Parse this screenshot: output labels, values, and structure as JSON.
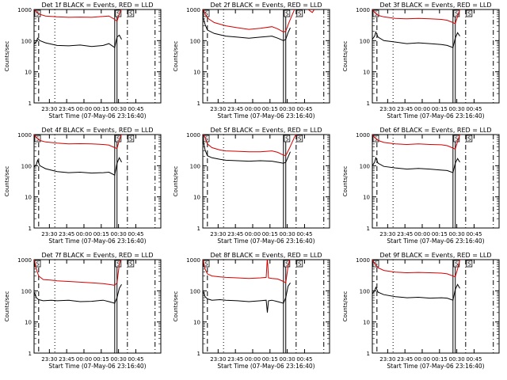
{
  "colors": {
    "events": "#000000",
    "lld": "#d40000",
    "axis": "#000000"
  },
  "ylabel": "Counts/sec",
  "xlabel": "Start Time (07-May-06 23:16:40)",
  "y_ticks": [
    "1",
    "10",
    "100",
    "1000"
  ],
  "y_scale": "log",
  "x_ticks": [
    "23:30",
    "23:45",
    "00:00",
    "00:15",
    "00:30",
    "00:45"
  ],
  "x_range_minutes": [
    0,
    110
  ],
  "x_tick_minutes": [
    13.3,
    28.3,
    43.3,
    58.3,
    73.3,
    88.3
  ],
  "ylim": [
    1,
    1000
  ],
  "marker_labels": [
    "S",
    "S",
    "S"
  ],
  "vlines": [
    {
      "style": "dashed",
      "minute": 4
    },
    {
      "style": "dotted",
      "minute": 18
    },
    {
      "style": "solid",
      "minute": 70
    },
    {
      "style": "solid",
      "minute": 72
    },
    {
      "style": "dashdot",
      "minute": 81
    },
    {
      "style": "dashdot",
      "minute": 105
    }
  ],
  "chart_data": [
    {
      "type": "line",
      "title": "Det 1f BLACK = Events, RED = LLD",
      "series": [
        {
          "color": "red",
          "x": [
            0,
            2,
            5,
            10,
            20,
            30,
            40,
            50,
            60,
            65,
            70,
            72,
            74,
            76,
            78
          ],
          "y": [
            1050,
            850,
            700,
            620,
            580,
            560,
            570,
            560,
            600,
            620,
            480,
            420,
            700,
            1100,
            1300
          ]
        },
        {
          "color": "black",
          "x": [
            0,
            2,
            3,
            5,
            10,
            20,
            30,
            40,
            50,
            60,
            65,
            70,
            72,
            74,
            76
          ],
          "y": [
            80,
            90,
            120,
            100,
            85,
            70,
            68,
            72,
            65,
            70,
            80,
            60,
            130,
            150,
            110
          ]
        }
      ]
    },
    {
      "type": "line",
      "title": "Det 2f BLACK = Events, RED = LLD",
      "series": [
        {
          "color": "red",
          "x": [
            0,
            2,
            5,
            10,
            20,
            30,
            40,
            50,
            60,
            65,
            70,
            72,
            75,
            80,
            85,
            90,
            95,
            100
          ],
          "y": [
            1200,
            700,
            500,
            380,
            300,
            260,
            230,
            250,
            280,
            240,
            190,
            200,
            400,
            1100,
            1400,
            1100,
            800,
            1500
          ]
        },
        {
          "color": "black",
          "x": [
            0,
            2,
            4,
            10,
            20,
            30,
            40,
            50,
            60,
            65,
            70,
            72,
            74,
            76
          ],
          "y": [
            600,
            330,
            220,
            170,
            140,
            130,
            120,
            130,
            140,
            120,
            100,
            110,
            180,
            260
          ]
        }
      ]
    },
    {
      "type": "line",
      "title": "Det 3f BLACK = Events, RED = LLD",
      "series": [
        {
          "color": "red",
          "x": [
            0,
            2,
            5,
            10,
            20,
            30,
            40,
            50,
            60,
            65,
            70,
            72,
            74,
            76,
            78
          ],
          "y": [
            1100,
            800,
            650,
            580,
            520,
            500,
            520,
            500,
            480,
            450,
            380,
            350,
            600,
            1000,
            1300
          ]
        },
        {
          "color": "black",
          "x": [
            0,
            2,
            3,
            5,
            10,
            20,
            30,
            40,
            50,
            60,
            65,
            70,
            72,
            74,
            76
          ],
          "y": [
            110,
            140,
            190,
            130,
            100,
            90,
            80,
            85,
            80,
            75,
            70,
            60,
            120,
            180,
            140
          ]
        }
      ]
    },
    {
      "type": "line",
      "title": "Det 4f BLACK = Events, RED = LLD",
      "series": [
        {
          "color": "red",
          "x": [
            0,
            2,
            5,
            10,
            20,
            30,
            40,
            50,
            60,
            65,
            70,
            72,
            74,
            76,
            78
          ],
          "y": [
            1000,
            800,
            650,
            580,
            530,
            500,
            510,
            500,
            480,
            460,
            380,
            360,
            650,
            1100,
            1300
          ]
        },
        {
          "color": "black",
          "x": [
            0,
            2,
            3,
            5,
            10,
            20,
            30,
            40,
            50,
            60,
            65,
            70,
            72,
            74,
            76
          ],
          "y": [
            90,
            110,
            150,
            100,
            80,
            65,
            60,
            62,
            58,
            60,
            62,
            50,
            120,
            180,
            130
          ]
        }
      ]
    },
    {
      "type": "line",
      "title": "Det 5f BLACK = Events, RED = LLD",
      "series": [
        {
          "color": "red",
          "x": [
            0,
            2,
            4,
            8,
            15,
            20,
            30,
            40,
            50,
            60,
            65,
            70,
            72,
            75,
            80,
            85
          ],
          "y": [
            1100,
            800,
            500,
            380,
            320,
            300,
            290,
            280,
            280,
            300,
            270,
            220,
            210,
            350,
            900,
            1300
          ]
        },
        {
          "color": "black",
          "x": [
            0,
            2,
            4,
            8,
            15,
            20,
            30,
            40,
            50,
            60,
            65,
            70,
            72,
            74,
            76
          ],
          "y": [
            700,
            320,
            210,
            180,
            160,
            150,
            145,
            140,
            145,
            140,
            130,
            120,
            130,
            190,
            280
          ]
        }
      ]
    },
    {
      "type": "line",
      "title": "Det 6f BLACK = Events, RED = LLD",
      "series": [
        {
          "color": "red",
          "x": [
            0,
            2,
            5,
            10,
            20,
            30,
            40,
            50,
            60,
            65,
            70,
            72,
            74,
            76,
            78
          ],
          "y": [
            1050,
            800,
            650,
            560,
            500,
            480,
            500,
            480,
            470,
            440,
            370,
            340,
            600,
            1000,
            1300
          ]
        },
        {
          "color": "black",
          "x": [
            0,
            2,
            3,
            5,
            10,
            20,
            30,
            40,
            50,
            60,
            65,
            70,
            72,
            74,
            76
          ],
          "y": [
            100,
            130,
            180,
            120,
            95,
            85,
            78,
            82,
            78,
            72,
            70,
            60,
            120,
            170,
            130
          ]
        }
      ]
    },
    {
      "type": "line",
      "title": "Det 7f BLACK = Events, RED = LLD",
      "series": [
        {
          "color": "red",
          "x": [
            0,
            2,
            4,
            8,
            15,
            20,
            30,
            40,
            50,
            60,
            65,
            70,
            72,
            74,
            76,
            78
          ],
          "y": [
            1100,
            500,
            300,
            230,
            220,
            210,
            200,
            190,
            180,
            170,
            160,
            150,
            180,
            700,
            1200,
            1300
          ]
        },
        {
          "color": "black",
          "x": [
            0,
            2,
            4,
            8,
            15,
            20,
            30,
            40,
            50,
            60,
            65,
            70,
            72,
            74,
            76
          ],
          "y": [
            90,
            60,
            52,
            48,
            50,
            48,
            50,
            45,
            46,
            50,
            45,
            40,
            60,
            120,
            160
          ]
        }
      ]
    },
    {
      "type": "line",
      "title": "Det 8f BLACK = Events, RED = LLD",
      "series": [
        {
          "color": "red",
          "x": [
            0,
            2,
            4,
            8,
            15,
            20,
            30,
            40,
            50,
            55,
            56,
            57,
            60,
            65,
            70,
            72,
            74,
            76,
            78
          ],
          "y": [
            1100,
            500,
            350,
            300,
            280,
            270,
            260,
            250,
            260,
            270,
            1200,
            260,
            250,
            240,
            200,
            180,
            600,
            1200,
            1300
          ]
        },
        {
          "color": "black",
          "x": [
            0,
            2,
            4,
            8,
            15,
            20,
            30,
            40,
            50,
            55,
            56,
            57,
            60,
            65,
            70,
            72,
            74,
            76
          ],
          "y": [
            100,
            65,
            55,
            50,
            52,
            50,
            48,
            45,
            48,
            50,
            20,
            48,
            50,
            45,
            40,
            60,
            140,
            180
          ]
        }
      ]
    },
    {
      "type": "line",
      "title": "Det 9f BLACK = Events, RED = LLD",
      "series": [
        {
          "color": "red",
          "x": [
            0,
            2,
            5,
            10,
            20,
            30,
            40,
            50,
            60,
            65,
            70,
            72,
            74,
            76,
            78
          ],
          "y": [
            1000,
            750,
            550,
            450,
            400,
            380,
            390,
            380,
            370,
            350,
            300,
            280,
            500,
            1000,
            1300
          ]
        },
        {
          "color": "black",
          "x": [
            0,
            2,
            3,
            5,
            10,
            20,
            30,
            40,
            50,
            60,
            65,
            70,
            72,
            74,
            76
          ],
          "y": [
            80,
            100,
            130,
            90,
            75,
            65,
            60,
            62,
            58,
            60,
            58,
            50,
            110,
            160,
            120
          ]
        }
      ]
    }
  ]
}
